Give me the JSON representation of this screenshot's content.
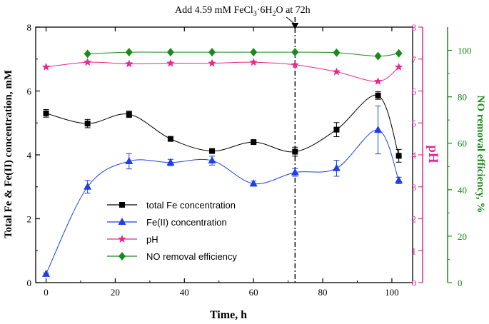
{
  "chart_data": {
    "type": "line",
    "annotation": {
      "prefix": "Add 4.59 mM FeCl",
      "sub1": "3",
      "mid": "·6H",
      "sub2": "2",
      "suffix": "O at 72h",
      "x": 72
    },
    "xlabel": "Time, h",
    "ylabel_left": "Total Fe & Fe(II)  concentration, mM",
    "ylabel_ph": "pH",
    "ylabel_right": "NO removal efficiency, %",
    "xlim": [
      -3,
      106
    ],
    "xticks": [
      0,
      20,
      40,
      60,
      80,
      100
    ],
    "ylim_left": [
      0,
      8
    ],
    "yticks_left": [
      0,
      2,
      4,
      6,
      8
    ],
    "ylim_ph": [
      0,
      8
    ],
    "yticks_ph": [
      0,
      1,
      2,
      3,
      4,
      5,
      6,
      7,
      8
    ],
    "ylim_right": [
      0,
      110
    ],
    "yticks_right": [
      0,
      20,
      40,
      60,
      80,
      100
    ],
    "colors": {
      "total_fe": "#000000",
      "fe2": "#1f3fe0",
      "ph": "#e8278f",
      "no": "#1a8a1a",
      "ph_axis": "#e8278f",
      "no_axis": "#1a8a1a"
    },
    "series": [
      {
        "name": "total Fe concentration",
        "key": "total_fe",
        "axis": "left",
        "marker": "square",
        "x": [
          0,
          12,
          24,
          36,
          48,
          60,
          72,
          84,
          96,
          102
        ],
        "y": [
          5.3,
          4.98,
          5.27,
          4.5,
          4.12,
          4.4,
          4.1,
          4.79,
          5.86,
          3.97
        ],
        "err": [
          0.12,
          0.13,
          0.1,
          0.05,
          0.04,
          0.05,
          0.14,
          0.22,
          0.12,
          0.2
        ]
      },
      {
        "name": "Fe(II) concentration",
        "key": "fe2",
        "axis": "left",
        "marker": "triangle",
        "x": [
          0,
          12,
          24,
          36,
          48,
          60,
          72,
          84,
          96,
          102
        ],
        "y": [
          0.27,
          3.0,
          3.8,
          3.76,
          3.82,
          3.1,
          3.45,
          3.58,
          4.78,
          3.2
        ],
        "err": [
          0.03,
          0.2,
          0.24,
          0.1,
          0.14,
          0.08,
          0.12,
          0.25,
          0.75,
          0.1
        ]
      },
      {
        "name": "pH",
        "key": "ph",
        "axis": "ph",
        "marker": "star",
        "x": [
          0,
          12,
          24,
          36,
          48,
          60,
          72,
          84,
          96,
          102
        ],
        "y": [
          6.75,
          6.9,
          6.85,
          6.87,
          6.87,
          6.9,
          6.82,
          6.6,
          6.3,
          6.75
        ]
      },
      {
        "name": "NO removal efficiency",
        "key": "no",
        "axis": "right",
        "marker": "diamond",
        "x": [
          12,
          24,
          36,
          48,
          60,
          72,
          84,
          96,
          102
        ],
        "y": [
          98.5,
          99.2,
          99.2,
          99.2,
          99.2,
          99.2,
          99.0,
          97.5,
          98.7
        ]
      }
    ]
  }
}
